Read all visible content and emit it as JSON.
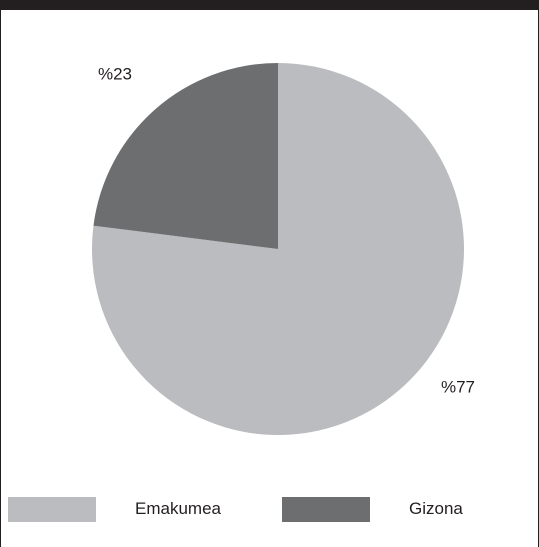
{
  "chart_data": {
    "type": "pie",
    "slices": [
      {
        "label": "Emakumea",
        "value": 77,
        "display": "%77",
        "color": "#bbbcbf"
      },
      {
        "label": "Gizona",
        "value": 23,
        "display": "%23",
        "color": "#6d6e70"
      }
    ],
    "legend_placement": "bottom"
  },
  "legend": {
    "items": [
      {
        "label": "Emakumea",
        "color": "#bbbcbf"
      },
      {
        "label": "Gizona",
        "color": "#6d6e70"
      }
    ]
  }
}
